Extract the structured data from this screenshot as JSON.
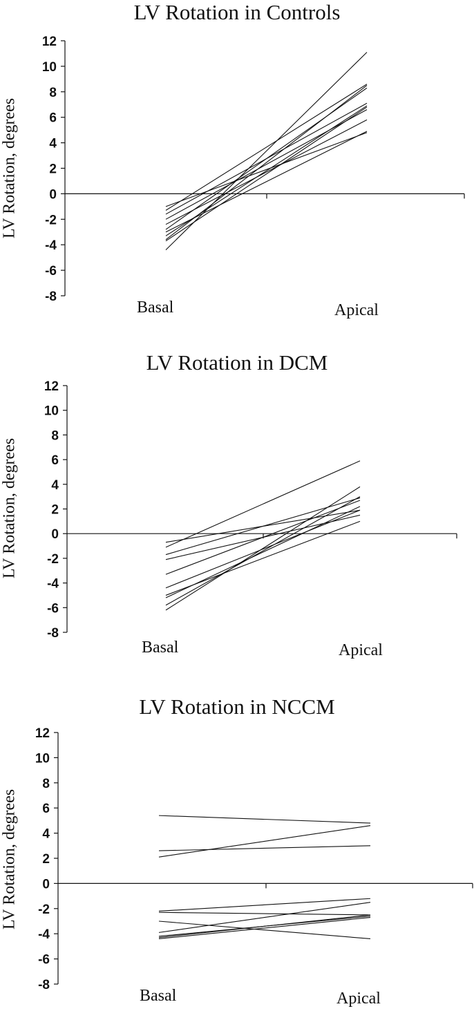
{
  "chart_data": [
    {
      "type": "line",
      "title": "LV Rotation in Controls",
      "ylabel": "LV Rotation, degrees",
      "xlabel": "",
      "categories": [
        "Basal",
        "Apical"
      ],
      "ylim": [
        -8,
        12
      ],
      "yticks": [
        "12",
        "10",
        "8",
        "6",
        "4",
        "2",
        "0",
        "-2",
        "-4",
        "-6",
        "-8"
      ],
      "grid": false,
      "legend": "none",
      "series": [
        {
          "values": [
            -1.0,
            4.8
          ]
        },
        {
          "values": [
            -1.3,
            8.6
          ]
        },
        {
          "values": [
            -1.6,
            7.1
          ]
        },
        {
          "values": [
            -2.0,
            6.6
          ]
        },
        {
          "values": [
            -2.4,
            5.8
          ]
        },
        {
          "values": [
            -2.8,
            8.3
          ]
        },
        {
          "values": [
            -3.0,
            4.9
          ]
        },
        {
          "values": [
            -3.3,
            6.9
          ]
        },
        {
          "values": [
            -3.6,
            8.5
          ]
        },
        {
          "values": [
            -3.7,
            6.8
          ]
        },
        {
          "values": [
            -4.4,
            11.1
          ]
        }
      ]
    },
    {
      "type": "line",
      "title": "LV Rotation in DCM",
      "ylabel": "LV Rotation, degrees",
      "xlabel": "",
      "categories": [
        "Basal",
        "Apical"
      ],
      "ylim": [
        -8,
        12
      ],
      "yticks": [
        "12",
        "10",
        "8",
        "6",
        "4",
        "2",
        "0",
        "-2",
        "-4",
        "-6",
        "-8"
      ],
      "grid": false,
      "legend": "none",
      "series": [
        {
          "values": [
            -0.7,
            1.9
          ]
        },
        {
          "values": [
            -1.1,
            5.9
          ]
        },
        {
          "values": [
            -1.7,
            2.9
          ]
        },
        {
          "values": [
            -2.1,
            1.5
          ]
        },
        {
          "values": [
            -3.3,
            2.7
          ]
        },
        {
          "values": [
            -4.4,
            1.9
          ]
        },
        {
          "values": [
            -5.0,
            1.0
          ]
        },
        {
          "values": [
            -5.2,
            2.2
          ]
        },
        {
          "values": [
            -5.8,
            3.0
          ]
        },
        {
          "values": [
            -6.2,
            3.8
          ]
        }
      ]
    },
    {
      "type": "line",
      "title": "LV Rotation in NCCM",
      "ylabel": "LV Rotation, degrees",
      "xlabel": "",
      "categories": [
        "Basal",
        "Apical"
      ],
      "ylim": [
        -8,
        12
      ],
      "yticks": [
        "12",
        "10",
        "8",
        "6",
        "4",
        "2",
        "0",
        "-2",
        "-4",
        "-6",
        "-8"
      ],
      "grid": false,
      "legend": "none",
      "series": [
        {
          "values": [
            5.4,
            4.8
          ]
        },
        {
          "values": [
            2.6,
            3.0
          ]
        },
        {
          "values": [
            2.1,
            4.6
          ]
        },
        {
          "values": [
            -2.2,
            -1.2
          ]
        },
        {
          "values": [
            -2.3,
            -2.5
          ]
        },
        {
          "values": [
            -3.0,
            -4.4
          ]
        },
        {
          "values": [
            -3.9,
            -1.5
          ]
        },
        {
          "values": [
            -4.2,
            -2.6
          ]
        },
        {
          "values": [
            -4.3,
            -2.5
          ]
        },
        {
          "values": [
            -4.4,
            -2.7
          ]
        }
      ]
    }
  ]
}
